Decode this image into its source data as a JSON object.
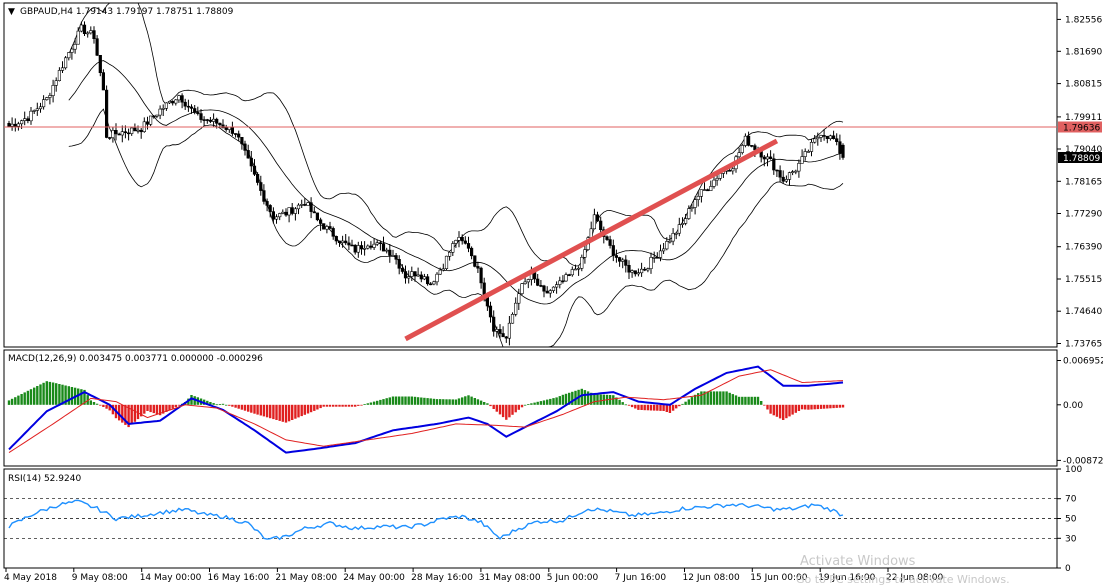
{
  "main": {
    "header_marker": "▼",
    "header": "GBPAUD,H4  1.79143 1.79197 1.78751 1.78809",
    "hline_value": 1.79636,
    "hline_label": "1.79636",
    "current_value": 1.78809,
    "current_label": "1.78809",
    "yticks": [
      "1.82556",
      "1.81690",
      "1.80815",
      "1.79911",
      "1.79040",
      "1.78165",
      "1.77290",
      "1.76390",
      "1.75515",
      "1.74640",
      "1.73765"
    ],
    "trendline": {
      "from_bar": 126,
      "from_value": 1.7389,
      "to_bar": 244,
      "to_value": 1.7926
    },
    "colors": {
      "up": "#000000",
      "down": "#000000",
      "bands": "#000000",
      "hline": "#e06060",
      "trend": "#e05050",
      "bg": "#ffffff"
    }
  },
  "macd": {
    "header": "MACD(12,26,9) 0.003475 0.003771 0.000000 -0.000296",
    "yticks": [
      "0.006952",
      "0.00",
      "-0.008723"
    ],
    "colors": {
      "hist_up": "#1a8a1a",
      "hist_down": "#e02020",
      "macd": "#0000e0",
      "signal": "#e02020"
    }
  },
  "rsi": {
    "header": "RSI(14) 52.9240",
    "yticks": [
      "100",
      "70",
      "50",
      "30",
      "0"
    ],
    "levels": [
      70,
      50,
      30
    ],
    "colors": {
      "line": "#1e90ff"
    }
  },
  "xticks": [
    "4 May 2018",
    "9 May 08:00",
    "14 May 00:00",
    "16 May 16:00",
    "21 May 08:00",
    "24 May 00:00",
    "28 May 16:00",
    "31 May 08:00",
    "5 Jun 00:00",
    "7 Jun 16:00",
    "12 Jun 08:00",
    "15 Jun 00:00",
    "19 Jun 16:00",
    "22 Jun 08:00"
  ],
  "watermark": {
    "line1": "Activate Windows",
    "line2": "Go to PC settings to activate Windows."
  },
  "chart_data": {
    "type": "candlestick",
    "symbol": "GBPAUD",
    "timeframe": "H4",
    "last_bar": {
      "open": 1.79143,
      "high": 1.79197,
      "low": 1.78751,
      "close": 1.78809
    },
    "ylim": [
      1.7367,
      1.83
    ],
    "x_range": [
      "4 May 2018",
      "22 Jun 08:00"
    ],
    "close_path": [
      [
        0,
        1.7966
      ],
      [
        6,
        1.799
      ],
      [
        12,
        1.804
      ],
      [
        18,
        1.815
      ],
      [
        23,
        1.823
      ],
      [
        27,
        1.821
      ],
      [
        30,
        1.806
      ],
      [
        31,
        1.794
      ],
      [
        36,
        1.795
      ],
      [
        42,
        1.796
      ],
      [
        48,
        1.801
      ],
      [
        54,
        1.805
      ],
      [
        60,
        1.799
      ],
      [
        66,
        1.7975
      ],
      [
        72,
        1.795
      ],
      [
        76,
        1.787
      ],
      [
        80,
        1.779
      ],
      [
        84,
        1.772
      ],
      [
        88,
        1.773
      ],
      [
        94,
        1.776
      ],
      [
        98,
        1.771
      ],
      [
        102,
        1.768
      ],
      [
        106,
        1.765
      ],
      [
        110,
        1.763
      ],
      [
        114,
        1.765
      ],
      [
        118,
        1.764
      ],
      [
        122,
        1.762
      ],
      [
        126,
        1.756
      ],
      [
        130,
        1.757
      ],
      [
        134,
        1.754
      ],
      [
        138,
        1.759
      ],
      [
        142,
        1.766
      ],
      [
        146,
        1.764
      ],
      [
        150,
        1.755
      ],
      [
        154,
        1.742
      ],
      [
        158,
        1.739
      ],
      [
        162,
        1.752
      ],
      [
        166,
        1.756
      ],
      [
        170,
        1.751
      ],
      [
        174,
        1.753
      ],
      [
        178,
        1.756
      ],
      [
        182,
        1.76
      ],
      [
        186,
        1.772
      ],
      [
        190,
        1.765
      ],
      [
        194,
        1.76
      ],
      [
        198,
        1.757
      ],
      [
        202,
        1.758
      ],
      [
        206,
        1.762
      ],
      [
        210,
        1.766
      ],
      [
        214,
        1.77
      ],
      [
        218,
        1.777
      ],
      [
        222,
        1.78
      ],
      [
        226,
        1.784
      ],
      [
        230,
        1.786
      ],
      [
        234,
        1.793
      ],
      [
        238,
        1.79
      ],
      [
        242,
        1.787
      ],
      [
        246,
        1.782
      ],
      [
        250,
        1.785
      ],
      [
        254,
        1.79
      ],
      [
        258,
        1.795
      ],
      [
        262,
        1.793
      ],
      [
        265,
        1.7881
      ]
    ],
    "macd_path": [
      [
        0,
        -0.007
      ],
      [
        12,
        -0.001
      ],
      [
        24,
        0.002
      ],
      [
        32,
        0.0
      ],
      [
        38,
        -0.003
      ],
      [
        48,
        -0.0025
      ],
      [
        58,
        0.001
      ],
      [
        68,
        -0.0008
      ],
      [
        78,
        -0.004
      ],
      [
        88,
        -0.0075
      ],
      [
        96,
        -0.007
      ],
      [
        110,
        -0.006
      ],
      [
        122,
        -0.004
      ],
      [
        136,
        -0.003
      ],
      [
        146,
        -0.002
      ],
      [
        152,
        -0.003
      ],
      [
        158,
        -0.005
      ],
      [
        166,
        -0.003
      ],
      [
        174,
        -0.001
      ],
      [
        182,
        0.0015
      ],
      [
        192,
        0.002
      ],
      [
        200,
        0.0005
      ],
      [
        210,
        0.0
      ],
      [
        218,
        0.0025
      ],
      [
        228,
        0.005
      ],
      [
        238,
        0.006
      ],
      [
        246,
        0.003
      ],
      [
        254,
        0.003
      ],
      [
        265,
        0.0035
      ]
    ],
    "signal_path": [
      [
        0,
        -0.0075
      ],
      [
        14,
        -0.003
      ],
      [
        26,
        0.001
      ],
      [
        34,
        0.0005
      ],
      [
        44,
        -0.002
      ],
      [
        56,
        0.0
      ],
      [
        66,
        -0.0005
      ],
      [
        78,
        -0.003
      ],
      [
        88,
        -0.0055
      ],
      [
        100,
        -0.0065
      ],
      [
        114,
        -0.0055
      ],
      [
        128,
        -0.0045
      ],
      [
        142,
        -0.003
      ],
      [
        154,
        -0.0032
      ],
      [
        164,
        -0.0035
      ],
      [
        176,
        -0.0015
      ],
      [
        186,
        0.0005
      ],
      [
        196,
        0.0012
      ],
      [
        208,
        0.0008
      ],
      [
        220,
        0.0015
      ],
      [
        232,
        0.0045
      ],
      [
        242,
        0.0055
      ],
      [
        252,
        0.0035
      ],
      [
        265,
        0.0038
      ]
    ],
    "rsi_path": [
      [
        0,
        42
      ],
      [
        8,
        55
      ],
      [
        16,
        64
      ],
      [
        22,
        67
      ],
      [
        28,
        60
      ],
      [
        34,
        50
      ],
      [
        40,
        52
      ],
      [
        48,
        56
      ],
      [
        56,
        59
      ],
      [
        62,
        54
      ],
      [
        68,
        52
      ],
      [
        76,
        45
      ],
      [
        82,
        28
      ],
      [
        88,
        32
      ],
      [
        94,
        40
      ],
      [
        102,
        45
      ],
      [
        110,
        40
      ],
      [
        118,
        42
      ],
      [
        126,
        41
      ],
      [
        132,
        44
      ],
      [
        138,
        50
      ],
      [
        144,
        52
      ],
      [
        150,
        46
      ],
      [
        156,
        30
      ],
      [
        162,
        40
      ],
      [
        168,
        47
      ],
      [
        176,
        48
      ],
      [
        184,
        60
      ],
      [
        190,
        58
      ],
      [
        198,
        53
      ],
      [
        206,
        55
      ],
      [
        214,
        60
      ],
      [
        222,
        62
      ],
      [
        230,
        64
      ],
      [
        238,
        62
      ],
      [
        244,
        59
      ],
      [
        250,
        60
      ],
      [
        256,
        64
      ],
      [
        262,
        58
      ],
      [
        265,
        53
      ]
    ]
  }
}
